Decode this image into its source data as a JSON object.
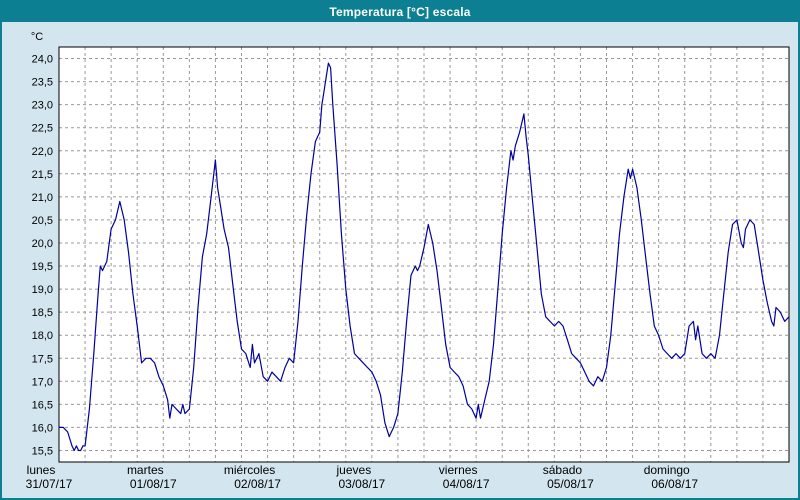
{
  "window": {
    "title": "Temperatura [°C] escala"
  },
  "colors": {
    "titlebar": "#0c7f93",
    "window_background": "#d3e5ef",
    "plot_background": "#ffffff",
    "plot_border": "#000000",
    "gridline": "#999999",
    "line": "#0000a0"
  },
  "chart_data": {
    "type": "line",
    "title": "Temperatura [°C] escala",
    "xlabel": "",
    "ylabel": "°C",
    "y_axis": {
      "min": 15.5,
      "max": 24.0,
      "step": 0.5,
      "range_min": 15.25,
      "range_max": 24.25,
      "decimal_comma": true
    },
    "x_axis": {
      "unit": "hours",
      "min": 0,
      "max": 168,
      "gridline_step": 6
    },
    "grid": true,
    "legend": "none",
    "days": [
      {
        "name": "lunes",
        "date": "31/07/17"
      },
      {
        "name": "martes",
        "date": "01/08/17"
      },
      {
        "name": "miércoles",
        "date": "02/08/17"
      },
      {
        "name": "jueves",
        "date": "03/08/17"
      },
      {
        "name": "viernes",
        "date": "04/08/17"
      },
      {
        "name": "sábado",
        "date": "05/08/17"
      },
      {
        "name": "domingo",
        "date": "06/08/17"
      }
    ],
    "series": [
      {
        "name": "Temperatura",
        "color": "#0000a0",
        "points": [
          [
            0,
            16.0
          ],
          [
            1,
            16.0
          ],
          [
            2,
            15.9
          ],
          [
            3,
            15.6
          ],
          [
            3.5,
            15.5
          ],
          [
            4,
            15.6
          ],
          [
            4.5,
            15.5
          ],
          [
            5,
            15.5
          ],
          [
            5.5,
            15.6
          ],
          [
            6,
            15.6
          ],
          [
            7,
            16.4
          ],
          [
            8,
            17.6
          ],
          [
            9,
            18.9
          ],
          [
            9.5,
            19.5
          ],
          [
            10,
            19.4
          ],
          [
            11,
            19.6
          ],
          [
            12,
            20.3
          ],
          [
            13,
            20.5
          ],
          [
            14,
            20.9
          ],
          [
            15,
            20.5
          ],
          [
            16,
            19.8
          ],
          [
            17,
            18.9
          ],
          [
            18,
            18.2
          ],
          [
            19,
            17.4
          ],
          [
            20,
            17.5
          ],
          [
            21,
            17.5
          ],
          [
            22,
            17.4
          ],
          [
            23,
            17.1
          ],
          [
            24,
            16.9
          ],
          [
            25,
            16.6
          ],
          [
            25.5,
            16.2
          ],
          [
            26,
            16.5
          ],
          [
            27,
            16.4
          ],
          [
            28,
            16.3
          ],
          [
            28.5,
            16.5
          ],
          [
            29,
            16.3
          ],
          [
            30,
            16.4
          ],
          [
            31,
            17.3
          ],
          [
            32,
            18.6
          ],
          [
            33,
            19.7
          ],
          [
            34,
            20.2
          ],
          [
            35,
            21.0
          ],
          [
            36,
            21.8
          ],
          [
            36.5,
            21.2
          ],
          [
            37,
            20.9
          ],
          [
            38,
            20.3
          ],
          [
            39,
            19.9
          ],
          [
            40,
            19.1
          ],
          [
            41,
            18.3
          ],
          [
            42,
            17.7
          ],
          [
            43,
            17.6
          ],
          [
            44,
            17.3
          ],
          [
            44.5,
            17.8
          ],
          [
            45,
            17.4
          ],
          [
            46,
            17.6
          ],
          [
            47,
            17.1
          ],
          [
            48,
            17.0
          ],
          [
            49,
            17.2
          ],
          [
            50,
            17.1
          ],
          [
            51,
            17.0
          ],
          [
            52,
            17.3
          ],
          [
            53,
            17.5
          ],
          [
            54,
            17.4
          ],
          [
            55,
            18.3
          ],
          [
            56,
            19.5
          ],
          [
            57,
            20.6
          ],
          [
            58,
            21.5
          ],
          [
            59,
            22.2
          ],
          [
            60,
            22.4
          ],
          [
            60.5,
            23.0
          ],
          [
            61,
            23.3
          ],
          [
            61.5,
            23.6
          ],
          [
            62,
            23.9
          ],
          [
            62.5,
            23.8
          ],
          [
            63,
            23.0
          ],
          [
            64,
            21.7
          ],
          [
            65,
            20.2
          ],
          [
            66,
            19.0
          ],
          [
            67,
            18.2
          ],
          [
            68,
            17.6
          ],
          [
            69,
            17.5
          ],
          [
            70,
            17.4
          ],
          [
            71,
            17.3
          ],
          [
            72,
            17.2
          ],
          [
            73,
            17.0
          ],
          [
            74,
            16.7
          ],
          [
            75,
            16.1
          ],
          [
            76,
            15.8
          ],
          [
            77,
            16.0
          ],
          [
            78,
            16.3
          ],
          [
            79,
            17.2
          ],
          [
            80,
            18.3
          ],
          [
            81,
            19.3
          ],
          [
            82,
            19.5
          ],
          [
            82.5,
            19.4
          ],
          [
            83,
            19.5
          ],
          [
            84,
            19.9
          ],
          [
            85,
            20.4
          ],
          [
            86,
            20.0
          ],
          [
            87,
            19.4
          ],
          [
            88,
            18.6
          ],
          [
            89,
            17.8
          ],
          [
            90,
            17.3
          ],
          [
            91,
            17.2
          ],
          [
            92,
            17.1
          ],
          [
            93,
            16.9
          ],
          [
            94,
            16.5
          ],
          [
            95,
            16.4
          ],
          [
            96,
            16.2
          ],
          [
            96.5,
            16.5
          ],
          [
            97,
            16.2
          ],
          [
            98,
            16.6
          ],
          [
            99,
            17.0
          ],
          [
            100,
            17.8
          ],
          [
            101,
            19.0
          ],
          [
            102,
            20.2
          ],
          [
            103,
            21.2
          ],
          [
            104,
            22.0
          ],
          [
            104.5,
            21.8
          ],
          [
            105,
            22.1
          ],
          [
            106,
            22.4
          ],
          [
            107,
            22.8
          ],
          [
            107.5,
            22.3
          ],
          [
            108,
            21.9
          ],
          [
            109,
            20.9
          ],
          [
            110,
            19.9
          ],
          [
            111,
            18.9
          ],
          [
            112,
            18.4
          ],
          [
            113,
            18.3
          ],
          [
            114,
            18.2
          ],
          [
            115,
            18.3
          ],
          [
            116,
            18.2
          ],
          [
            117,
            17.9
          ],
          [
            118,
            17.6
          ],
          [
            119,
            17.5
          ],
          [
            120,
            17.4
          ],
          [
            121,
            17.2
          ],
          [
            122,
            17.0
          ],
          [
            123,
            16.9
          ],
          [
            124,
            17.1
          ],
          [
            125,
            17.0
          ],
          [
            126,
            17.3
          ],
          [
            127,
            18.0
          ],
          [
            128,
            19.1
          ],
          [
            129,
            20.2
          ],
          [
            130,
            21.0
          ],
          [
            131,
            21.6
          ],
          [
            131.5,
            21.4
          ],
          [
            132,
            21.6
          ],
          [
            133,
            21.2
          ],
          [
            134,
            20.5
          ],
          [
            135,
            19.7
          ],
          [
            136,
            18.9
          ],
          [
            137,
            18.2
          ],
          [
            138,
            18.0
          ],
          [
            139,
            17.7
          ],
          [
            140,
            17.6
          ],
          [
            141,
            17.5
          ],
          [
            142,
            17.6
          ],
          [
            143,
            17.5
          ],
          [
            144,
            17.6
          ],
          [
            145,
            18.2
          ],
          [
            146,
            18.3
          ],
          [
            146.5,
            17.9
          ],
          [
            147,
            18.2
          ],
          [
            148,
            17.6
          ],
          [
            149,
            17.5
          ],
          [
            150,
            17.6
          ],
          [
            151,
            17.5
          ],
          [
            152,
            18.0
          ],
          [
            153,
            18.9
          ],
          [
            154,
            19.8
          ],
          [
            155,
            20.4
          ],
          [
            156,
            20.5
          ],
          [
            157,
            20.0
          ],
          [
            157.5,
            19.9
          ],
          [
            158,
            20.3
          ],
          [
            159,
            20.5
          ],
          [
            160,
            20.4
          ],
          [
            161,
            19.8
          ],
          [
            162,
            19.2
          ],
          [
            163,
            18.7
          ],
          [
            164,
            18.3
          ],
          [
            164.5,
            18.2
          ],
          [
            165,
            18.6
          ],
          [
            166,
            18.5
          ],
          [
            167,
            18.3
          ],
          [
            168,
            18.4
          ]
        ]
      }
    ]
  }
}
